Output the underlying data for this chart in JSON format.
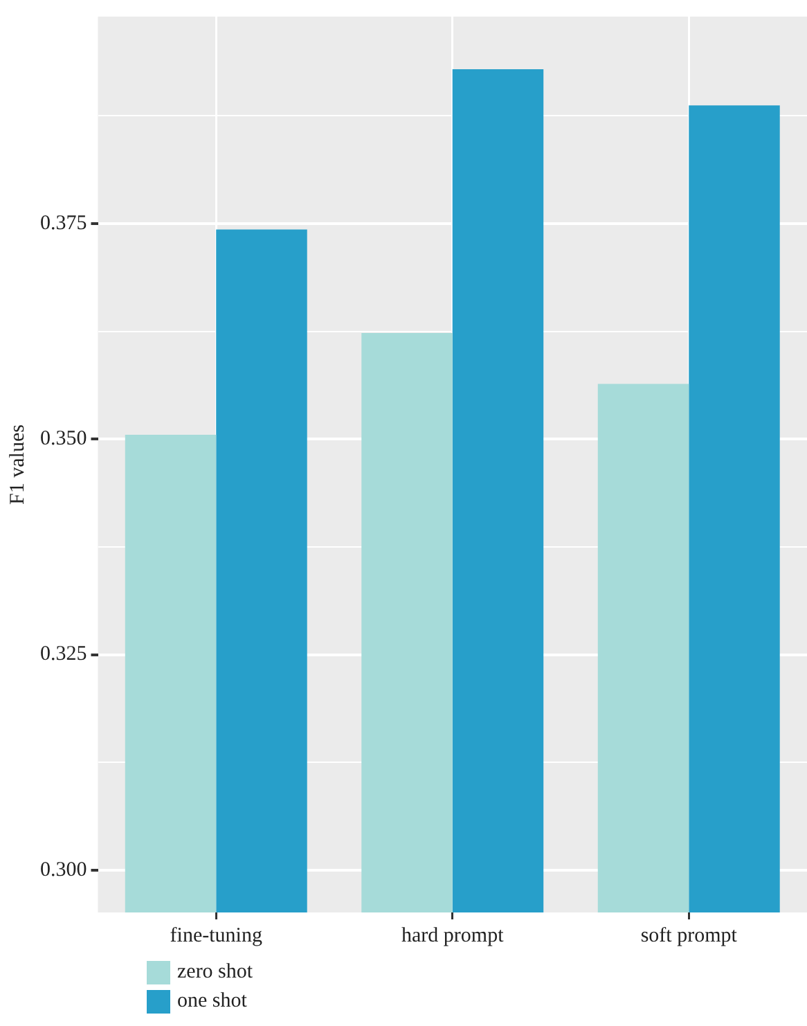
{
  "chart_data": {
    "type": "bar",
    "ylabel": "F1 values",
    "categories": [
      "fine-tuning",
      "hard prompt",
      "soft prompt"
    ],
    "series": [
      {
        "name": "zero shot",
        "color": "#a6dbd9",
        "values": [
          0.3505,
          0.3623,
          0.3564
        ]
      },
      {
        "name": "one shot",
        "color": "#279fca",
        "values": [
          0.3743,
          0.3929,
          0.3887
        ]
      }
    ],
    "ylim": [
      0.2951,
      0.399
    ],
    "yticks": [
      {
        "value": 0.3,
        "label": "0.300"
      },
      {
        "value": 0.3125,
        "label": null
      },
      {
        "value": 0.325,
        "label": "0.325"
      },
      {
        "value": 0.3375,
        "label": null
      },
      {
        "value": 0.35,
        "label": "0.350"
      },
      {
        "value": 0.3625,
        "label": null
      },
      {
        "value": 0.375,
        "label": "0.375"
      },
      {
        "value": 0.3875,
        "label": null
      }
    ],
    "grid": true,
    "legend": "bottom left"
  }
}
